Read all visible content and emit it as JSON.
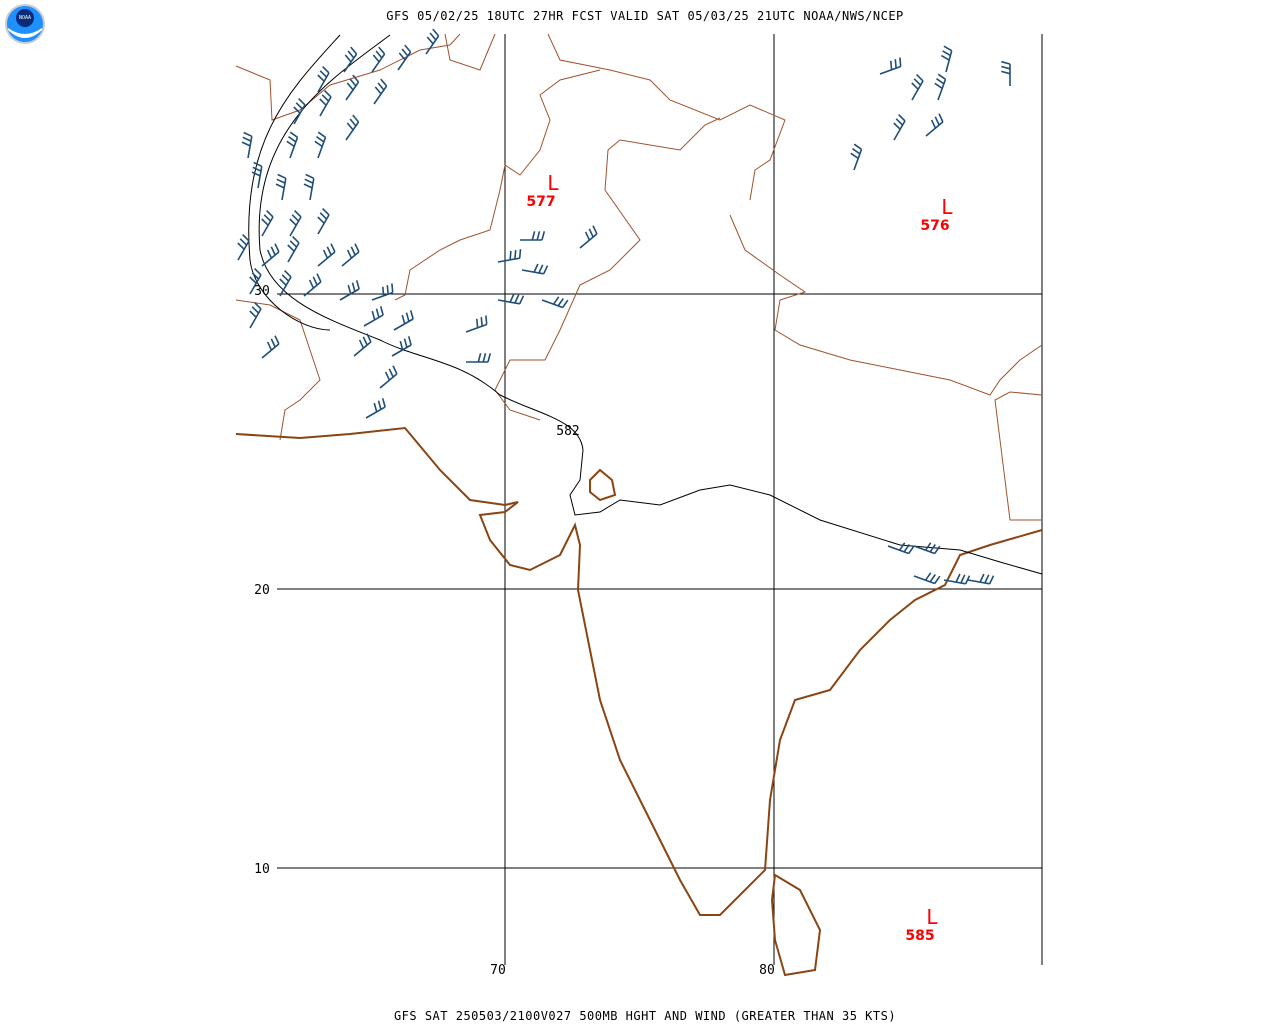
{
  "header": {
    "title": "GFS 05/02/25 18UTC 27HR FCST VALID SAT 05/03/25 21UTC NOAA/NWS/NCEP",
    "logo": "NOAA"
  },
  "map": {
    "lat_labels": [
      "30",
      "20",
      "10"
    ],
    "lon_labels": [
      "70",
      "80"
    ],
    "lows": [
      {
        "symbol": "L",
        "label": "577"
      },
      {
        "symbol": "L",
        "label": "576"
      },
      {
        "symbol": "L",
        "label": "585"
      }
    ],
    "contour_label": "582"
  },
  "footer": "GFS SAT 250503/2100V027 500MB HGHT AND WIND (GREATER THAN 35 KTS)"
}
